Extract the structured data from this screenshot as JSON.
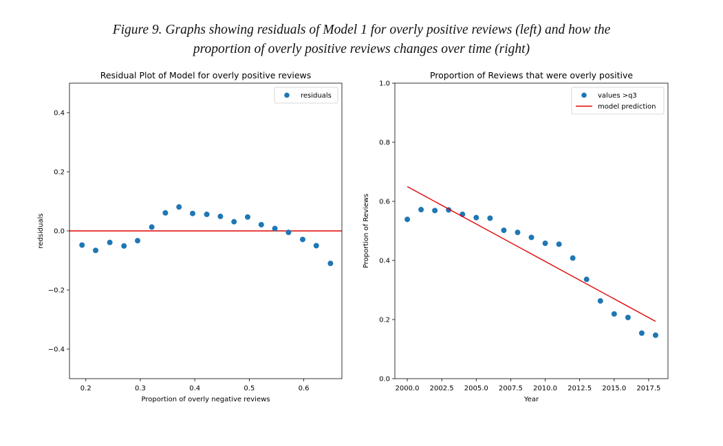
{
  "caption": {
    "line1": "Figure 9. Graphs showing residuals of Model 1 for overly positive reviews (left) and how the",
    "line2": "proportion of overly positive reviews changes over time (right)"
  },
  "colors": {
    "points": "#1f77b4",
    "line": "#e00000",
    "axes": "#000000"
  },
  "chart_data": [
    {
      "type": "scatter",
      "title": "Residual Plot of Model for overly positive reviews",
      "xlabel": "Proportion of overly negative reviews",
      "ylabel": "redsiduals",
      "xlim": [
        0.17,
        0.67
      ],
      "ylim": [
        -0.5,
        0.5
      ],
      "xticks": [
        0.2,
        0.3,
        0.4,
        0.5,
        0.6
      ],
      "xtick_labels": [
        "0.2",
        "0.3",
        "0.4",
        "0.5",
        "0.6"
      ],
      "yticks": [
        -0.4,
        -0.2,
        0.0,
        0.2,
        0.4
      ],
      "ytick_labels": [
        "−0.4",
        "−0.2",
        "0.0",
        "0.2",
        "0.4"
      ],
      "grid": false,
      "legend": {
        "placement": "upper-right",
        "entries": [
          {
            "label": "residuals",
            "kind": "marker"
          }
        ]
      },
      "hline": {
        "y": 0.0,
        "color": "#e00000"
      },
      "series": [
        {
          "name": "residuals",
          "x": [
            0.193,
            0.218,
            0.244,
            0.27,
            0.295,
            0.321,
            0.346,
            0.371,
            0.396,
            0.422,
            0.447,
            0.472,
            0.497,
            0.522,
            0.547,
            0.572,
            0.598,
            0.623,
            0.649
          ],
          "y": [
            -0.048,
            -0.066,
            -0.039,
            -0.051,
            -0.033,
            0.013,
            0.061,
            0.081,
            0.059,
            0.056,
            0.049,
            0.031,
            0.047,
            0.021,
            0.008,
            -0.005,
            -0.029,
            -0.05,
            -0.11
          ]
        }
      ]
    },
    {
      "type": "scatter",
      "title": "Proportion of Reviews that were overly positive",
      "xlabel": "Year",
      "ylabel": "Proportion of Reviews",
      "xlim": [
        1999.1,
        2018.9
      ],
      "ylim": [
        0.0,
        1.0
      ],
      "xticks": [
        2000.0,
        2002.5,
        2005.0,
        2007.5,
        2010.0,
        2012.5,
        2015.0,
        2017.5
      ],
      "xtick_labels": [
        "2000.0",
        "2002.5",
        "2005.0",
        "2007.5",
        "2010.0",
        "2012.5",
        "2015.0",
        "2017.5"
      ],
      "yticks": [
        0.0,
        0.2,
        0.4,
        0.6,
        0.8,
        1.0
      ],
      "ytick_labels": [
        "0.0",
        "0.2",
        "0.4",
        "0.6",
        "0.8",
        "1.0"
      ],
      "grid": false,
      "legend": {
        "placement": "upper-right",
        "entries": [
          {
            "label": "values >q3",
            "kind": "marker"
          },
          {
            "label": "model prediction",
            "kind": "line"
          }
        ]
      },
      "series": [
        {
          "name": "values >q3",
          "x": [
            2000,
            2001,
            2002,
            2003,
            2004,
            2005,
            2006,
            2007,
            2008,
            2009,
            2010,
            2011,
            2012,
            2013,
            2014,
            2015,
            2016,
            2017,
            2018
          ],
          "y": [
            0.539,
            0.572,
            0.569,
            0.571,
            0.556,
            0.545,
            0.543,
            0.502,
            0.495,
            0.478,
            0.458,
            0.455,
            0.408,
            0.336,
            0.263,
            0.219,
            0.207,
            0.154,
            0.147
          ]
        },
        {
          "name": "model prediction",
          "kind": "line",
          "x": [
            2000,
            2018
          ],
          "y": [
            0.65,
            0.194
          ]
        }
      ]
    }
  ]
}
